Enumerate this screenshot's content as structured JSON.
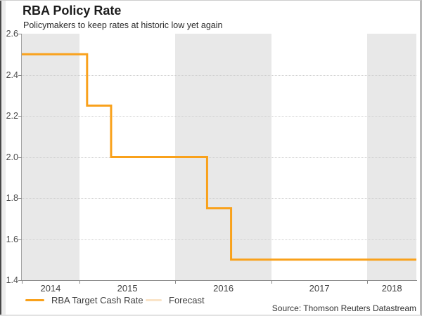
{
  "window": {
    "title": "RBA Policy Rate",
    "subtitle": "Policymakers to keep rates at historic low yet again",
    "source": "Source: Thomson Reuters Datastream"
  },
  "legend": {
    "items": [
      {
        "label": "RBA Target Cash Rate",
        "color": "#F9A11B",
        "swatch_width": 27
      },
      {
        "label": "Forecast",
        "color": "#FAE4C8",
        "swatch_width": 23
      }
    ]
  },
  "colors": {
    "line": "#F9A11B",
    "forecast": "#FAE4C8",
    "band": "#e8e8e8",
    "grid": "#cfcfcf",
    "axis": "#8a8a8a"
  },
  "chart_data": {
    "type": "line",
    "style": "step",
    "title": "RBA Policy Rate",
    "subtitle": "Policymakers to keep rates at historic low yet again",
    "xlabel": "",
    "ylabel": "",
    "ylim": [
      1.4,
      2.6
    ],
    "xlim": [
      2014.4,
      2018.51
    ],
    "y_ticks": [
      "2.6",
      "2.4",
      "2.2",
      "2.0",
      "1.8",
      "1.6",
      "1.4"
    ],
    "x_ticks": [
      2014,
      2015,
      2016,
      2017,
      2018
    ],
    "shaded_years": [
      2014,
      2016,
      2018
    ],
    "grid_values": [
      2.4,
      2.2,
      2.0,
      1.8,
      1.6
    ],
    "grid_on": true,
    "legend_position": "bottom-left",
    "series": [
      {
        "name": "RBA Target Cash Rate",
        "color": "#F9A11B",
        "steps": [
          {
            "x_start": 2014.4,
            "value": 2.5
          },
          {
            "x_start": 2015.08,
            "value": 2.25
          },
          {
            "x_start": 2015.33,
            "value": 2.0
          },
          {
            "x_start": 2016.33,
            "value": 1.75
          },
          {
            "x_start": 2016.58,
            "value": 1.5
          }
        ],
        "x_end": 2018.51
      },
      {
        "name": "Forecast",
        "color": "#FAE4C8"
      }
    ]
  }
}
